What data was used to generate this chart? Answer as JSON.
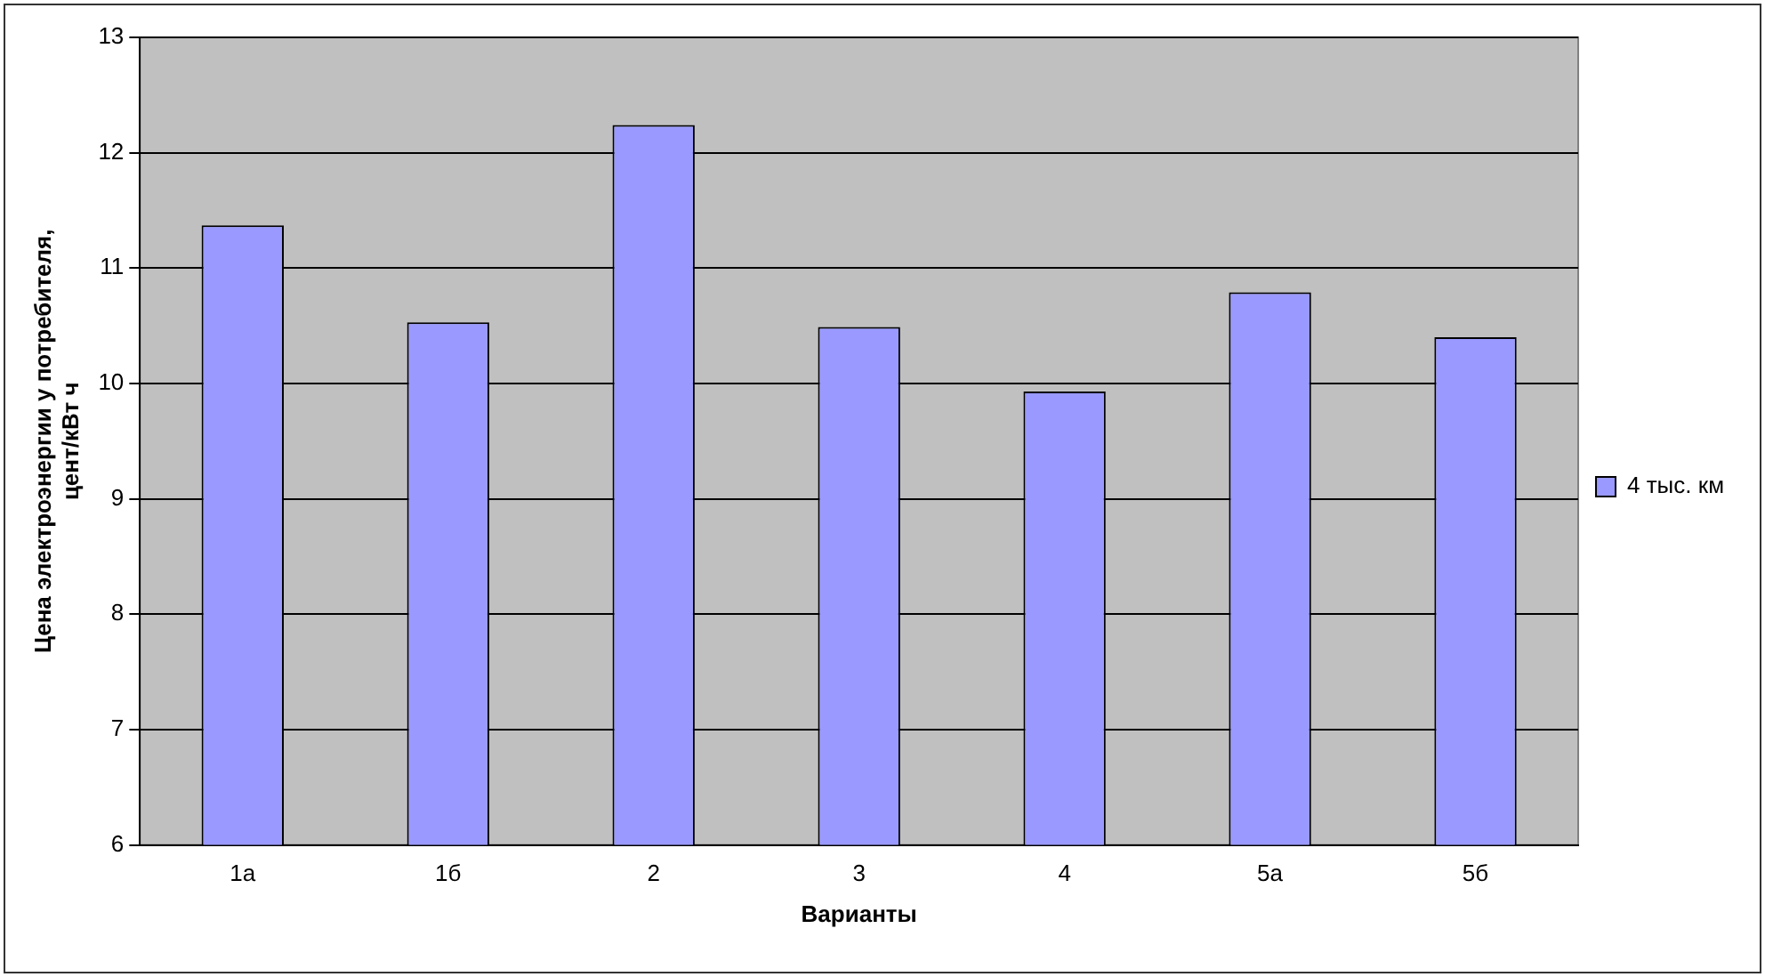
{
  "chart_data": {
    "type": "bar",
    "xlabel": "Варианты",
    "ylabel": "Цена электроэнергии у потребителя,\nцент/кВт ч",
    "categories": [
      "1а",
      "1б",
      "2",
      "3",
      "4",
      "5а",
      "5б"
    ],
    "series": [
      {
        "name": "4 тыс. км",
        "color": "#9999ff",
        "values": [
          11.37,
          10.53,
          12.24,
          10.49,
          9.93,
          10.79,
          10.4
        ]
      }
    ],
    "ylim": [
      6,
      13
    ],
    "yticks": [
      6,
      7,
      8,
      9,
      10,
      11,
      12,
      13
    ],
    "grid": "y",
    "legend": "right"
  }
}
